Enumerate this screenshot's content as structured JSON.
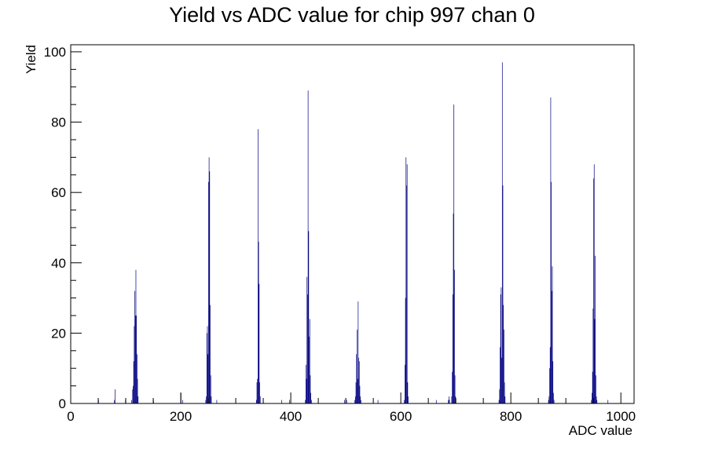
{
  "chart_data": {
    "type": "bar",
    "title": "Yield vs ADC value for chip 997 chan 0",
    "xlabel": "ADC value",
    "ylabel": "Yield",
    "xlim": [
      0,
      1024
    ],
    "ylim": [
      0,
      102
    ],
    "x_ticks": [
      0,
      200,
      400,
      600,
      800,
      1000
    ],
    "y_ticks": [
      0,
      20,
      40,
      60,
      80,
      100
    ],
    "grid": false,
    "legend": "none",
    "line_color": "#00007f",
    "bins": [
      {
        "x": 50,
        "y": 1
      },
      {
        "x": 79,
        "y": 1
      },
      {
        "x": 80,
        "y": 4
      },
      {
        "x": 99,
        "y": 1
      },
      {
        "x": 110,
        "y": 1
      },
      {
        "x": 112,
        "y": 4
      },
      {
        "x": 113,
        "y": 5
      },
      {
        "x": 114,
        "y": 12
      },
      {
        "x": 115,
        "y": 22
      },
      {
        "x": 116,
        "y": 32
      },
      {
        "x": 117,
        "y": 25
      },
      {
        "x": 118,
        "y": 38
      },
      {
        "x": 119,
        "y": 25
      },
      {
        "x": 120,
        "y": 14
      },
      {
        "x": 121,
        "y": 7
      },
      {
        "x": 122,
        "y": 2
      },
      {
        "x": 150,
        "y": 1
      },
      {
        "x": 200,
        "y": 3
      },
      {
        "x": 203,
        "y": 1
      },
      {
        "x": 245,
        "y": 1
      },
      {
        "x": 246,
        "y": 2
      },
      {
        "x": 247,
        "y": 20
      },
      {
        "x": 248,
        "y": 22
      },
      {
        "x": 249,
        "y": 14
      },
      {
        "x": 250,
        "y": 63
      },
      {
        "x": 251,
        "y": 70
      },
      {
        "x": 252,
        "y": 66
      },
      {
        "x": 253,
        "y": 28
      },
      {
        "x": 254,
        "y": 8
      },
      {
        "x": 255,
        "y": 2
      },
      {
        "x": 265,
        "y": 1
      },
      {
        "x": 337,
        "y": 1
      },
      {
        "x": 338,
        "y": 6
      },
      {
        "x": 339,
        "y": 7
      },
      {
        "x": 340,
        "y": 78
      },
      {
        "x": 341,
        "y": 46
      },
      {
        "x": 342,
        "y": 34
      },
      {
        "x": 343,
        "y": 6
      },
      {
        "x": 344,
        "y": 2
      },
      {
        "x": 383,
        "y": 1
      },
      {
        "x": 397,
        "y": 1
      },
      {
        "x": 426,
        "y": 1
      },
      {
        "x": 427,
        "y": 11
      },
      {
        "x": 428,
        "y": 7
      },
      {
        "x": 429,
        "y": 36
      },
      {
        "x": 430,
        "y": 31
      },
      {
        "x": 431,
        "y": 89
      },
      {
        "x": 432,
        "y": 49
      },
      {
        "x": 433,
        "y": 19
      },
      {
        "x": 434,
        "y": 24
      },
      {
        "x": 435,
        "y": 8
      },
      {
        "x": 436,
        "y": 3
      },
      {
        "x": 437,
        "y": 1
      },
      {
        "x": 497,
        "y": 1
      },
      {
        "x": 501,
        "y": 1
      },
      {
        "x": 516,
        "y": 1
      },
      {
        "x": 517,
        "y": 2
      },
      {
        "x": 518,
        "y": 6
      },
      {
        "x": 519,
        "y": 14
      },
      {
        "x": 520,
        "y": 21
      },
      {
        "x": 521,
        "y": 7
      },
      {
        "x": 522,
        "y": 29
      },
      {
        "x": 523,
        "y": 13
      },
      {
        "x": 524,
        "y": 12
      },
      {
        "x": 525,
        "y": 5
      },
      {
        "x": 526,
        "y": 2
      },
      {
        "x": 527,
        "y": 1
      },
      {
        "x": 558,
        "y": 1
      },
      {
        "x": 606,
        "y": 1
      },
      {
        "x": 607,
        "y": 11
      },
      {
        "x": 608,
        "y": 30
      },
      {
        "x": 609,
        "y": 70
      },
      {
        "x": 610,
        "y": 62
      },
      {
        "x": 611,
        "y": 68
      },
      {
        "x": 612,
        "y": 6
      },
      {
        "x": 613,
        "y": 2
      },
      {
        "x": 664,
        "y": 1
      },
      {
        "x": 686,
        "y": 1
      },
      {
        "x": 687,
        "y": 2
      },
      {
        "x": 688,
        "y": 1
      },
      {
        "x": 692,
        "y": 2
      },
      {
        "x": 693,
        "y": 9
      },
      {
        "x": 694,
        "y": 31
      },
      {
        "x": 695,
        "y": 54
      },
      {
        "x": 696,
        "y": 85
      },
      {
        "x": 697,
        "y": 38
      },
      {
        "x": 698,
        "y": 8
      },
      {
        "x": 699,
        "y": 2
      },
      {
        "x": 778,
        "y": 1
      },
      {
        "x": 779,
        "y": 4
      },
      {
        "x": 780,
        "y": 16
      },
      {
        "x": 781,
        "y": 31
      },
      {
        "x": 782,
        "y": 33
      },
      {
        "x": 783,
        "y": 13
      },
      {
        "x": 784,
        "y": 97
      },
      {
        "x": 785,
        "y": 62
      },
      {
        "x": 786,
        "y": 28
      },
      {
        "x": 787,
        "y": 21
      },
      {
        "x": 788,
        "y": 6
      },
      {
        "x": 789,
        "y": 2
      },
      {
        "x": 868,
        "y": 1
      },
      {
        "x": 869,
        "y": 2
      },
      {
        "x": 870,
        "y": 10
      },
      {
        "x": 871,
        "y": 16
      },
      {
        "x": 872,
        "y": 87
      },
      {
        "x": 873,
        "y": 63
      },
      {
        "x": 874,
        "y": 32
      },
      {
        "x": 875,
        "y": 39
      },
      {
        "x": 876,
        "y": 12
      },
      {
        "x": 877,
        "y": 3
      },
      {
        "x": 878,
        "y": 1
      },
      {
        "x": 946,
        "y": 1
      },
      {
        "x": 947,
        "y": 3
      },
      {
        "x": 948,
        "y": 9
      },
      {
        "x": 949,
        "y": 27
      },
      {
        "x": 950,
        "y": 64
      },
      {
        "x": 951,
        "y": 68
      },
      {
        "x": 952,
        "y": 24
      },
      {
        "x": 953,
        "y": 42
      },
      {
        "x": 954,
        "y": 8
      },
      {
        "x": 955,
        "y": 2
      },
      {
        "x": 956,
        "y": 1
      },
      {
        "x": 976,
        "y": 1
      }
    ]
  }
}
